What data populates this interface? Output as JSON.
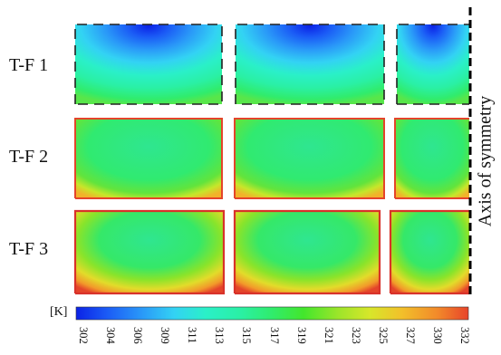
{
  "rows": [
    {
      "label": "T-F 1"
    },
    {
      "label": "T-F 2"
    },
    {
      "label": "T-F 3"
    }
  ],
  "axis_label": "Axis of symmetry",
  "colorbar": {
    "unit": "[K]",
    "ticks": [
      "302",
      "304",
      "306",
      "309",
      "311",
      "313",
      "315",
      "317",
      "319",
      "321",
      "323",
      "325",
      "327",
      "330",
      "332"
    ],
    "colors": [
      "#0b22e6",
      "#1b5cf6",
      "#2a9af8",
      "#33d2f4",
      "#2af0c8",
      "#2af0a4",
      "#30ec6c",
      "#43e62c",
      "#9ee52a",
      "#d8e62a",
      "#f2c02a",
      "#f28a2a",
      "#e8442a"
    ]
  }
}
